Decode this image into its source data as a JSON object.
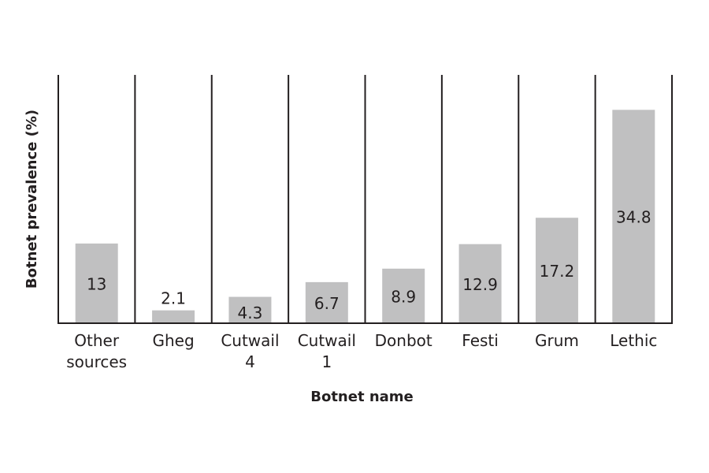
{
  "chart_data": {
    "type": "bar",
    "title": "",
    "xlabel": "Botnet name",
    "ylabel": "Botnet prevalence (%)",
    "categories": [
      [
        "Other",
        "sources"
      ],
      [
        "Gheg"
      ],
      [
        "Cutwail",
        "4"
      ],
      [
        "Cutwail",
        "1"
      ],
      [
        "Donbot"
      ],
      [
        "Festi"
      ],
      [
        "Grum"
      ],
      [
        "Lethic"
      ]
    ],
    "values": [
      13,
      2.1,
      4.3,
      6.7,
      8.9,
      12.9,
      17.2,
      34.8
    ],
    "value_labels": [
      "13",
      "2.1",
      "4.3",
      "6.7",
      "8.9",
      "12.9",
      "17.2",
      "34.8"
    ],
    "ylim": [
      0,
      35
    ],
    "grid": false,
    "legend": "none",
    "colors": {
      "bar": "#c0c0c1",
      "line": "#231f20",
      "text": "#231f20"
    }
  }
}
